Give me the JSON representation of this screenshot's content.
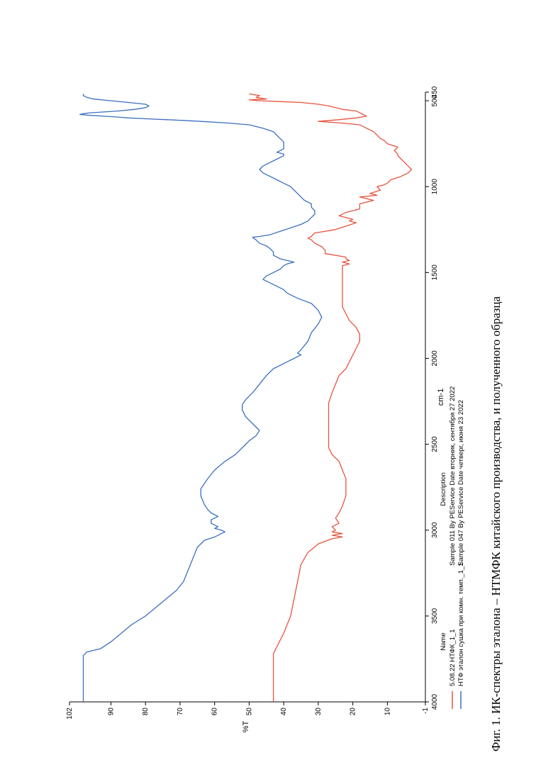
{
  "caption": "Фиг. 1. ИК-спектры эталона – НТМФК китайского производства, и полученного образца",
  "chart_data": {
    "type": "line",
    "xlabel": "cm-1",
    "ylabel": "%T",
    "xlim": [
      4000,
      450
    ],
    "ylim": [
      -1,
      102
    ],
    "x_ticks": [
      4000,
      3500,
      3000,
      2500,
      2000,
      1500,
      1000,
      500,
      450
    ],
    "y_ticks": [
      102,
      90,
      80,
      70,
      60,
      50,
      40,
      30,
      20,
      10,
      -1
    ],
    "legend": {
      "name_header": "Name",
      "description_header": "Description",
      "placement": "bottom"
    },
    "series": [
      {
        "name": "5.08.22 НТФК_1_1",
        "description": "Sample 011 By PEService Date вторник, сентября 27 2022",
        "color": "#e8533f",
        "points": [
          [
            4000,
            43
          ],
          [
            3720,
            43
          ],
          [
            3680,
            42
          ],
          [
            3600,
            40
          ],
          [
            3500,
            38
          ],
          [
            3400,
            37
          ],
          [
            3300,
            36
          ],
          [
            3200,
            35
          ],
          [
            3130,
            33
          ],
          [
            3080,
            30
          ],
          [
            3050,
            26
          ],
          [
            3040,
            23
          ],
          [
            3030,
            26
          ],
          [
            3020,
            23
          ],
          [
            3010,
            26
          ],
          [
            3000,
            25
          ],
          [
            2980,
            26
          ],
          [
            2960,
            24
          ],
          [
            2930,
            25
          ],
          [
            2900,
            24
          ],
          [
            2860,
            23
          ],
          [
            2800,
            22
          ],
          [
            2750,
            22
          ],
          [
            2700,
            22
          ],
          [
            2650,
            23
          ],
          [
            2600,
            24
          ],
          [
            2560,
            26
          ],
          [
            2520,
            27
          ],
          [
            2480,
            27
          ],
          [
            2420,
            27
          ],
          [
            2380,
            27
          ],
          [
            2340,
            27
          ],
          [
            2300,
            27
          ],
          [
            2260,
            27
          ],
          [
            2200,
            26
          ],
          [
            2150,
            25
          ],
          [
            2100,
            24
          ],
          [
            2060,
            22
          ],
          [
            2020,
            21
          ],
          [
            1980,
            20
          ],
          [
            1940,
            19
          ],
          [
            1900,
            18
          ],
          [
            1860,
            18
          ],
          [
            1820,
            19
          ],
          [
            1780,
            21
          ],
          [
            1740,
            22
          ],
          [
            1700,
            23
          ],
          [
            1660,
            23
          ],
          [
            1620,
            23
          ],
          [
            1580,
            23
          ],
          [
            1550,
            23
          ],
          [
            1520,
            23
          ],
          [
            1500,
            23
          ],
          [
            1480,
            23
          ],
          [
            1460,
            23
          ],
          [
            1450,
            21
          ],
          [
            1440,
            23
          ],
          [
            1430,
            21
          ],
          [
            1420,
            22
          ],
          [
            1410,
            22
          ],
          [
            1390,
            28
          ],
          [
            1370,
            28
          ],
          [
            1350,
            29
          ],
          [
            1330,
            31
          ],
          [
            1310,
            32
          ],
          [
            1300,
            33
          ],
          [
            1290,
            32
          ],
          [
            1270,
            31
          ],
          [
            1250,
            25
          ],
          [
            1230,
            22
          ],
          [
            1210,
            19
          ],
          [
            1200,
            21
          ],
          [
            1190,
            20
          ],
          [
            1170,
            24
          ],
          [
            1150,
            22
          ],
          [
            1130,
            18
          ],
          [
            1120,
            18
          ],
          [
            1100,
            18
          ],
          [
            1080,
            14
          ],
          [
            1060,
            18
          ],
          [
            1050,
            13
          ],
          [
            1040,
            15
          ],
          [
            1020,
            12
          ],
          [
            1000,
            13
          ],
          [
            990,
            11
          ],
          [
            980,
            10
          ],
          [
            960,
            9
          ],
          [
            940,
            6
          ],
          [
            920,
            4
          ],
          [
            900,
            3
          ],
          [
            880,
            4
          ],
          [
            860,
            5
          ],
          [
            840,
            6
          ],
          [
            820,
            7
          ],
          [
            810,
            7
          ],
          [
            790,
            8
          ],
          [
            770,
            7
          ],
          [
            750,
            10
          ],
          [
            730,
            11
          ],
          [
            720,
            12
          ],
          [
            700,
            13
          ],
          [
            680,
            14
          ],
          [
            660,
            16
          ],
          [
            640,
            18
          ],
          [
            630,
            23
          ],
          [
            620,
            30
          ],
          [
            610,
            24
          ],
          [
            600,
            19
          ],
          [
            590,
            16
          ],
          [
            580,
            17
          ],
          [
            570,
            18
          ],
          [
            560,
            19
          ],
          [
            550,
            23
          ],
          [
            540,
            25
          ],
          [
            530,
            27
          ],
          [
            520,
            30
          ],
          [
            510,
            35
          ],
          [
            500,
            47
          ],
          [
            495,
            50
          ],
          [
            490,
            45
          ],
          [
            480,
            48
          ],
          [
            470,
            47
          ],
          [
            460,
            50
          ]
        ]
      },
      {
        "name": "НТФ эталон сушка при комн. темп._1_1",
        "description": "Sample 047 By PEService Date четверг, июня 23 2022",
        "color": "#3b6fc0",
        "points": [
          [
            4000,
            98
          ],
          [
            3900,
            98
          ],
          [
            3800,
            98
          ],
          [
            3730,
            98
          ],
          [
            3710,
            97
          ],
          [
            3690,
            93
          ],
          [
            3650,
            90
          ],
          [
            3600,
            87
          ],
          [
            3550,
            84
          ],
          [
            3500,
            80
          ],
          [
            3450,
            77
          ],
          [
            3400,
            74
          ],
          [
            3350,
            71
          ],
          [
            3300,
            69
          ],
          [
            3250,
            68
          ],
          [
            3200,
            67
          ],
          [
            3150,
            66
          ],
          [
            3100,
            65
          ],
          [
            3060,
            63
          ],
          [
            3040,
            60
          ],
          [
            3020,
            58
          ],
          [
            3010,
            57
          ],
          [
            3000,
            58
          ],
          [
            2990,
            60
          ],
          [
            2980,
            59
          ],
          [
            2960,
            61
          ],
          [
            2940,
            61
          ],
          [
            2920,
            59
          ],
          [
            2900,
            61
          ],
          [
            2880,
            62
          ],
          [
            2850,
            63
          ],
          [
            2800,
            64
          ],
          [
            2760,
            64
          ],
          [
            2700,
            62
          ],
          [
            2650,
            60
          ],
          [
            2600,
            57
          ],
          [
            2560,
            54
          ],
          [
            2520,
            52
          ],
          [
            2480,
            50
          ],
          [
            2450,
            48
          ],
          [
            2420,
            47
          ],
          [
            2400,
            48
          ],
          [
            2380,
            49
          ],
          [
            2340,
            51
          ],
          [
            2300,
            52
          ],
          [
            2270,
            52
          ],
          [
            2240,
            51
          ],
          [
            2200,
            49
          ],
          [
            2150,
            47
          ],
          [
            2100,
            45
          ],
          [
            2060,
            43
          ],
          [
            2030,
            40
          ],
          [
            2000,
            37
          ],
          [
            1980,
            35
          ],
          [
            1970,
            36
          ],
          [
            1950,
            35
          ],
          [
            1900,
            33
          ],
          [
            1850,
            32
          ],
          [
            1800,
            30
          ],
          [
            1760,
            29
          ],
          [
            1720,
            30
          ],
          [
            1680,
            32
          ],
          [
            1650,
            36
          ],
          [
            1640,
            37
          ],
          [
            1620,
            39
          ],
          [
            1600,
            40
          ],
          [
            1580,
            42
          ],
          [
            1560,
            44
          ],
          [
            1540,
            46
          ],
          [
            1520,
            45
          ],
          [
            1500,
            43
          ],
          [
            1480,
            41
          ],
          [
            1460,
            40
          ],
          [
            1450,
            39
          ],
          [
            1440,
            37
          ],
          [
            1430,
            39
          ],
          [
            1420,
            41
          ],
          [
            1400,
            43
          ],
          [
            1380,
            43
          ],
          [
            1360,
            44
          ],
          [
            1345,
            45
          ],
          [
            1330,
            47
          ],
          [
            1310,
            48
          ],
          [
            1295,
            49
          ],
          [
            1290,
            47
          ],
          [
            1280,
            44
          ],
          [
            1260,
            41
          ],
          [
            1240,
            38
          ],
          [
            1220,
            35
          ],
          [
            1200,
            33
          ],
          [
            1180,
            32
          ],
          [
            1160,
            31
          ],
          [
            1140,
            31
          ],
          [
            1120,
            32
          ],
          [
            1100,
            32
          ],
          [
            1080,
            34
          ],
          [
            1060,
            35
          ],
          [
            1040,
            36
          ],
          [
            1020,
            37
          ],
          [
            1000,
            38
          ],
          [
            980,
            40
          ],
          [
            960,
            42
          ],
          [
            940,
            44
          ],
          [
            920,
            46
          ],
          [
            900,
            47
          ],
          [
            880,
            46
          ],
          [
            860,
            44
          ],
          [
            840,
            42
          ],
          [
            820,
            40
          ],
          [
            810,
            40
          ],
          [
            800,
            42
          ],
          [
            780,
            40
          ],
          [
            760,
            40
          ],
          [
            740,
            40
          ],
          [
            720,
            41
          ],
          [
            700,
            42
          ],
          [
            680,
            43
          ],
          [
            660,
            46
          ],
          [
            640,
            50
          ],
          [
            630,
            56
          ],
          [
            620,
            64
          ],
          [
            612,
            72
          ],
          [
            605,
            80
          ],
          [
            600,
            85
          ],
          [
            595,
            88
          ],
          [
            590,
            92
          ],
          [
            585,
            96
          ],
          [
            580,
            99
          ],
          [
            575,
            98
          ],
          [
            570,
            96
          ],
          [
            560,
            88
          ],
          [
            550,
            83
          ],
          [
            540,
            80
          ],
          [
            530,
            79
          ],
          [
            520,
            80
          ],
          [
            510,
            85
          ],
          [
            500,
            90
          ],
          [
            490,
            95
          ],
          [
            480,
            97
          ],
          [
            470,
            98
          ],
          [
            460,
            98
          ]
        ]
      }
    ]
  }
}
